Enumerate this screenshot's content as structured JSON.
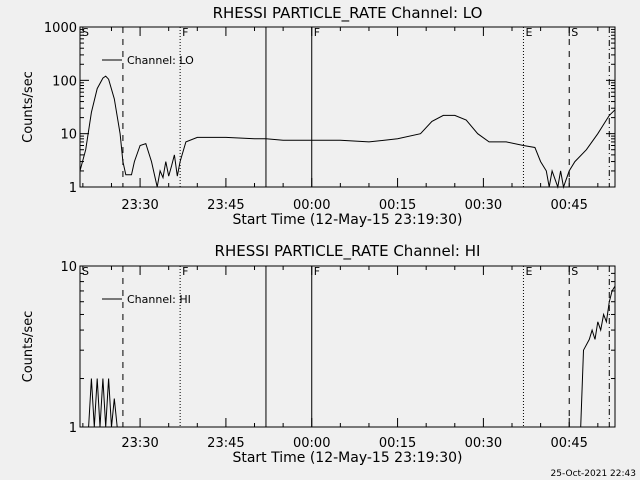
{
  "footer_timestamp": "25-Oct-2021 22:43",
  "colors": {
    "background": "#f0f0f0",
    "ink": "#000000"
  },
  "chart_data": [
    {
      "type": "line",
      "title": "RHESSI PARTICLE_RATE Channel: LO",
      "xlabel": "Start Time (12-May-15 23:19:30)",
      "ylabel": "Counts/sec",
      "y_scale": "log",
      "ylim": [
        1,
        1000
      ],
      "y_ticks": [
        1,
        10,
        100,
        1000
      ],
      "y_tick_labels": [
        "1",
        "10",
        "100",
        "1000"
      ],
      "xlim": [
        "23:19:30",
        "00:53:00"
      ],
      "x_tick_times": [
        "23:30",
        "23:45",
        "00:00",
        "00:15",
        "00:30",
        "00:45"
      ],
      "x_tick_labels": [
        "23:30",
        "23:45",
        "00:00",
        "00:15",
        "00:30",
        "00:45"
      ],
      "grid": false,
      "legend": {
        "entries": [
          "Channel: LO"
        ],
        "position": "top-left"
      },
      "markers": [
        {
          "time": "23:19:30",
          "label": "S",
          "style": "none"
        },
        {
          "time": "23:27:00",
          "label": "",
          "style": "dashed"
        },
        {
          "time": "23:37:00",
          "label": "F",
          "style": "dotted"
        },
        {
          "time": "23:52:00",
          "label": "",
          "style": "solid"
        },
        {
          "time": "00:00:00",
          "label": "F",
          "style": "solid"
        },
        {
          "time": "00:37:00",
          "label": "E",
          "style": "dotted"
        },
        {
          "time": "00:45:00",
          "label": "S",
          "style": "dashed"
        },
        {
          "time": "00:52:00",
          "label": "",
          "style": "dashdot"
        }
      ],
      "series": [
        {
          "points": [
            [
              "23:19:30",
              2
            ],
            [
              "23:20:30",
              5
            ],
            [
              "23:21:30",
              25
            ],
            [
              "23:22:30",
              70
            ],
            [
              "23:23:30",
              110
            ],
            [
              "23:24:00",
              120
            ],
            [
              "23:24:30",
              105
            ],
            [
              "23:25:30",
              45
            ],
            [
              "23:26:30",
              10
            ],
            [
              "23:27:00",
              3
            ],
            [
              "23:27:30",
              1.7
            ],
            [
              "23:28:30",
              1.7
            ],
            [
              "23:29:00",
              3
            ],
            [
              "23:30:00",
              6
            ],
            [
              "23:31:00",
              6.5
            ],
            [
              "23:32:00",
              3
            ],
            [
              "23:33:00",
              1
            ],
            [
              "23:33:30",
              2
            ],
            [
              "23:34:00",
              1.5
            ],
            [
              "23:34:30",
              3
            ],
            [
              "23:35:00",
              1.6
            ],
            [
              "23:35:30",
              2.5
            ],
            [
              "23:36:00",
              4
            ],
            [
              "23:36:30",
              1.6
            ],
            [
              "23:37:00",
              3
            ],
            [
              "23:38:00",
              7
            ],
            [
              "23:40:00",
              8.5
            ],
            [
              "23:45:00",
              8.5
            ],
            [
              "23:50:00",
              8
            ],
            [
              "23:52:00",
              8
            ],
            [
              "23:55:00",
              7.5
            ],
            [
              "00:00:00",
              7.5
            ],
            [
              "00:05:00",
              7.5
            ],
            [
              "00:10:00",
              7
            ],
            [
              "00:15:00",
              8
            ],
            [
              "00:19:00",
              10
            ],
            [
              "00:21:00",
              17
            ],
            [
              "00:23:00",
              22
            ],
            [
              "00:25:00",
              22
            ],
            [
              "00:27:00",
              18
            ],
            [
              "00:29:00",
              10
            ],
            [
              "00:31:00",
              7
            ],
            [
              "00:34:00",
              7
            ],
            [
              "00:37:00",
              6
            ],
            [
              "00:39:00",
              5.5
            ],
            [
              "00:40:00",
              3
            ],
            [
              "00:41:00",
              2
            ],
            [
              "00:41:30",
              1
            ],
            [
              "00:42:00",
              2
            ],
            [
              "00:43:00",
              1
            ],
            [
              "00:43:30",
              2
            ],
            [
              "00:44:00",
              1
            ],
            [
              "00:45:00",
              2
            ],
            [
              "00:46:00",
              3
            ],
            [
              "00:48:00",
              5
            ],
            [
              "00:50:00",
              10
            ],
            [
              "00:52:00",
              22
            ],
            [
              "00:53:00",
              28
            ]
          ]
        }
      ]
    },
    {
      "type": "line",
      "title": "RHESSI PARTICLE_RATE Channel: HI",
      "xlabel": "Start Time (12-May-15 23:19:30)",
      "ylabel": "Counts/sec",
      "y_scale": "log",
      "ylim": [
        1,
        10
      ],
      "y_ticks": [
        1,
        10
      ],
      "y_tick_labels": [
        "1",
        "10"
      ],
      "xlim": [
        "23:19:30",
        "00:53:00"
      ],
      "x_tick_times": [
        "23:30",
        "23:45",
        "00:00",
        "00:15",
        "00:30",
        "00:45"
      ],
      "x_tick_labels": [
        "23:30",
        "23:45",
        "00:00",
        "00:15",
        "00:30",
        "00:45"
      ],
      "grid": false,
      "legend": {
        "entries": [
          "Channel: HI"
        ],
        "position": "top-left"
      },
      "markers": [
        {
          "time": "23:19:30",
          "label": "S",
          "style": "none"
        },
        {
          "time": "23:27:00",
          "label": "",
          "style": "dashed"
        },
        {
          "time": "23:37:00",
          "label": "F",
          "style": "dotted"
        },
        {
          "time": "23:52:00",
          "label": "",
          "style": "solid"
        },
        {
          "time": "00:00:00",
          "label": "F",
          "style": "solid"
        },
        {
          "time": "00:37:00",
          "label": "E",
          "style": "dotted"
        },
        {
          "time": "00:45:00",
          "label": "S",
          "style": "dashed"
        },
        {
          "time": "00:52:00",
          "label": "",
          "style": "dashdot"
        }
      ],
      "series": [
        {
          "points": [
            [
              "23:21:00",
              1
            ],
            [
              "23:21:30",
              2
            ],
            [
              "23:22:00",
              1
            ],
            [
              "23:22:30",
              2
            ],
            [
              "23:23:00",
              1
            ],
            [
              "23:23:30",
              2
            ],
            [
              "23:24:00",
              1
            ],
            [
              "23:24:30",
              2
            ],
            [
              "23:25:00",
              1
            ],
            [
              "23:25:30",
              1.5
            ],
            [
              "23:26:00",
              1
            ]
          ]
        },
        {
          "points": [
            [
              "00:47:00",
              1
            ],
            [
              "00:47:30",
              3
            ],
            [
              "00:48:30",
              3.5
            ],
            [
              "00:49:00",
              4
            ],
            [
              "00:49:30",
              3.5
            ],
            [
              "00:50:00",
              4.5
            ],
            [
              "00:50:30",
              4
            ],
            [
              "00:51:00",
              5
            ],
            [
              "00:51:30",
              4.5
            ],
            [
              "00:52:00",
              6
            ],
            [
              "00:52:30",
              7
            ],
            [
              "00:53:00",
              7.5
            ]
          ]
        }
      ]
    }
  ]
}
